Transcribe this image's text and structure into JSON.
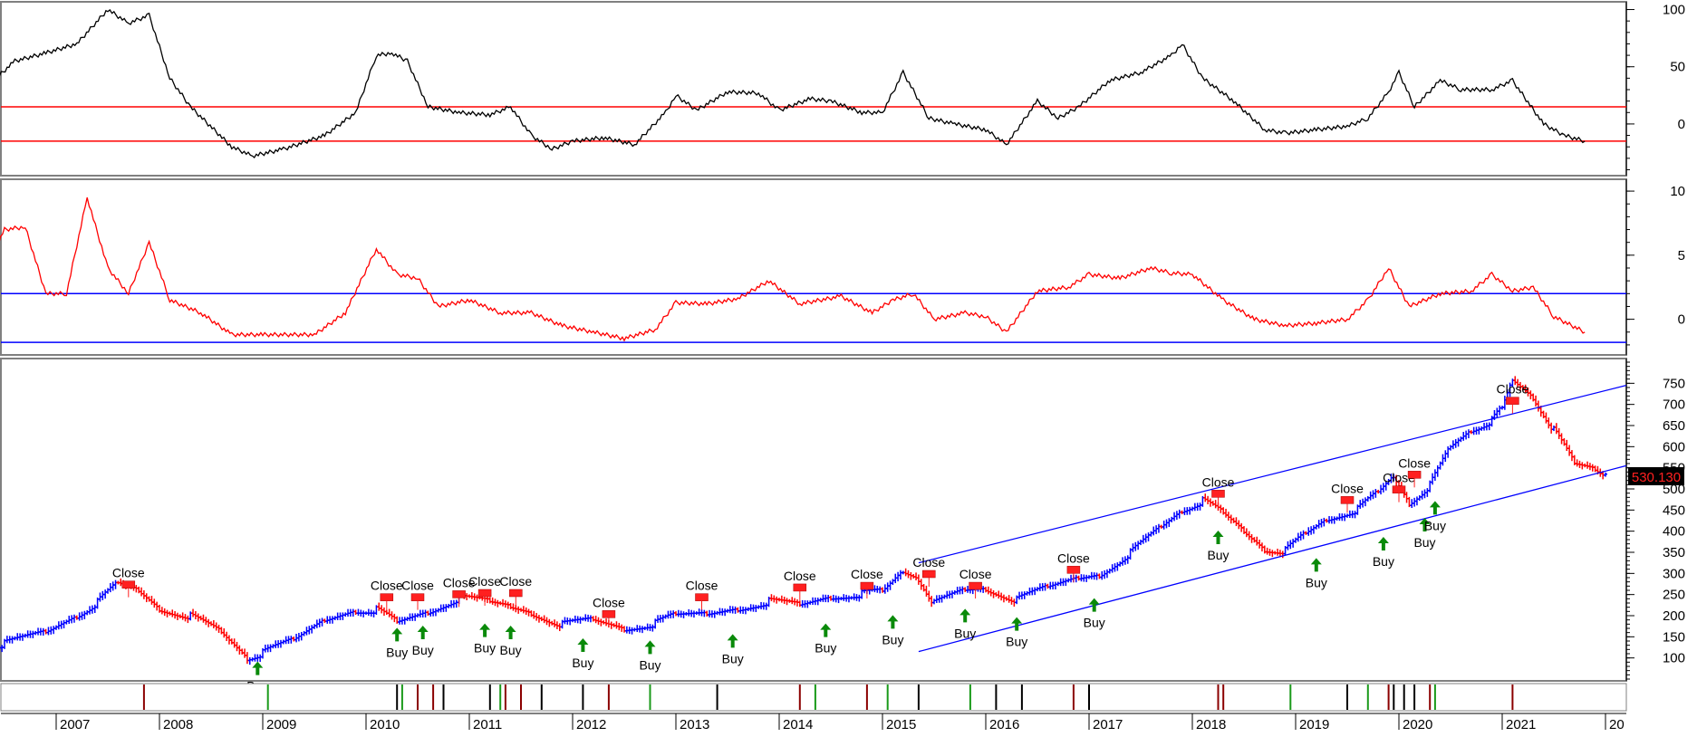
{
  "chart_data": {
    "type": "candlestick",
    "x_labels": [
      "2007",
      "2008",
      "2009",
      "2010",
      "2011",
      "2012",
      "2013",
      "2014",
      "2015",
      "2016",
      "2017",
      "2018",
      "2019",
      "2020",
      "2021",
      "20"
    ],
    "panels": [
      {
        "name": "oscillator-1",
        "yticks": [
          100,
          50,
          0
        ],
        "ylim": [
          -42,
          102
        ],
        "reference_lines": [
          {
            "value": 15,
            "color": "#ff0000"
          },
          {
            "value": -15,
            "color": "#ff0000"
          }
        ],
        "line_color": "#000000",
        "series": [
          [
            2006.0,
            25
          ],
          [
            2006.3,
            30
          ],
          [
            2006.6,
            55
          ],
          [
            2006.9,
            62
          ],
          [
            2007.2,
            70
          ],
          [
            2007.5,
            100
          ],
          [
            2007.7,
            88
          ],
          [
            2007.9,
            95
          ],
          [
            2008.1,
            40
          ],
          [
            2008.3,
            15
          ],
          [
            2008.7,
            -20
          ],
          [
            2008.9,
            -28
          ],
          [
            2009.2,
            -22
          ],
          [
            2009.6,
            -10
          ],
          [
            2009.9,
            10
          ],
          [
            2010.1,
            60
          ],
          [
            2010.25,
            62
          ],
          [
            2010.4,
            55
          ],
          [
            2010.6,
            15
          ],
          [
            2010.9,
            10
          ],
          [
            2011.2,
            8
          ],
          [
            2011.4,
            15
          ],
          [
            2011.6,
            -10
          ],
          [
            2011.8,
            -22
          ],
          [
            2012.0,
            -15
          ],
          [
            2012.3,
            -12
          ],
          [
            2012.6,
            -18
          ],
          [
            2012.9,
            10
          ],
          [
            2013.0,
            25
          ],
          [
            2013.2,
            12
          ],
          [
            2013.5,
            28
          ],
          [
            2013.8,
            27
          ],
          [
            2014.0,
            12
          ],
          [
            2014.3,
            22
          ],
          [
            2014.5,
            20
          ],
          [
            2014.8,
            10
          ],
          [
            2015.0,
            10
          ],
          [
            2015.2,
            45
          ],
          [
            2015.45,
            5
          ],
          [
            2015.7,
            0
          ],
          [
            2016.0,
            -5
          ],
          [
            2016.2,
            -18
          ],
          [
            2016.5,
            20
          ],
          [
            2016.7,
            5
          ],
          [
            2016.9,
            15
          ],
          [
            2017.2,
            38
          ],
          [
            2017.5,
            45
          ],
          [
            2017.8,
            60
          ],
          [
            2017.9,
            70
          ],
          [
            2018.1,
            40
          ],
          [
            2018.4,
            20
          ],
          [
            2018.7,
            -5
          ],
          [
            2018.9,
            -8
          ],
          [
            2019.2,
            -5
          ],
          [
            2019.5,
            -2
          ],
          [
            2019.7,
            5
          ],
          [
            2019.9,
            28
          ],
          [
            2020.0,
            45
          ],
          [
            2020.15,
            15
          ],
          [
            2020.4,
            38
          ],
          [
            2020.6,
            30
          ],
          [
            2020.9,
            30
          ],
          [
            2021.1,
            38
          ],
          [
            2021.4,
            0
          ],
          [
            2021.6,
            -10
          ],
          [
            2021.8,
            -15
          ]
        ]
      },
      {
        "name": "oscillator-2",
        "yticks": [
          10,
          5,
          0
        ],
        "ylim": [
          -2.5,
          10.5
        ],
        "reference_lines": [
          {
            "value": 2.0,
            "color": "#0000ff"
          },
          {
            "value": -1.8,
            "color": "#0000ff"
          }
        ],
        "line_color": "#ff0000",
        "series": [
          [
            2006.0,
            1.3
          ],
          [
            2006.2,
            1.5
          ],
          [
            2006.5,
            7.0
          ],
          [
            2006.7,
            7.2
          ],
          [
            2006.9,
            2.0
          ],
          [
            2007.1,
            2.0
          ],
          [
            2007.3,
            9.5
          ],
          [
            2007.5,
            4.0
          ],
          [
            2007.7,
            2.0
          ],
          [
            2007.9,
            6.0
          ],
          [
            2008.1,
            1.5
          ],
          [
            2008.4,
            0.5
          ],
          [
            2008.7,
            -1.2
          ],
          [
            2009.0,
            -1.2
          ],
          [
            2009.5,
            -1.2
          ],
          [
            2009.8,
            0.5
          ],
          [
            2010.1,
            5.5
          ],
          [
            2010.3,
            3.5
          ],
          [
            2010.5,
            3.2
          ],
          [
            2010.7,
            1.0
          ],
          [
            2011.0,
            1.5
          ],
          [
            2011.3,
            0.5
          ],
          [
            2011.6,
            0.5
          ],
          [
            2011.9,
            -0.5
          ],
          [
            2012.2,
            -1.0
          ],
          [
            2012.5,
            -1.5
          ],
          [
            2012.8,
            -0.8
          ],
          [
            2013.0,
            1.3
          ],
          [
            2013.3,
            1.2
          ],
          [
            2013.6,
            1.6
          ],
          [
            2013.9,
            3.0
          ],
          [
            2014.2,
            1.2
          ],
          [
            2014.6,
            1.8
          ],
          [
            2014.9,
            0.5
          ],
          [
            2015.1,
            1.5
          ],
          [
            2015.3,
            2.0
          ],
          [
            2015.5,
            0.0
          ],
          [
            2015.8,
            0.5
          ],
          [
            2016.0,
            0.2
          ],
          [
            2016.2,
            -1.0
          ],
          [
            2016.5,
            2.2
          ],
          [
            2016.8,
            2.5
          ],
          [
            2017.0,
            3.5
          ],
          [
            2017.3,
            3.2
          ],
          [
            2017.6,
            4.0
          ],
          [
            2017.8,
            3.6
          ],
          [
            2018.0,
            3.5
          ],
          [
            2018.3,
            1.5
          ],
          [
            2018.6,
            0.0
          ],
          [
            2018.9,
            -0.5
          ],
          [
            2019.2,
            -0.3
          ],
          [
            2019.5,
            0.0
          ],
          [
            2019.7,
            1.5
          ],
          [
            2019.9,
            4.0
          ],
          [
            2020.1,
            1.0
          ],
          [
            2020.4,
            2.0
          ],
          [
            2020.7,
            2.2
          ],
          [
            2020.9,
            3.5
          ],
          [
            2021.1,
            2.2
          ],
          [
            2021.3,
            2.5
          ],
          [
            2021.5,
            0.2
          ],
          [
            2021.8,
            -1.0
          ]
        ]
      },
      {
        "name": "price",
        "yticks": [
          750,
          700,
          650,
          600,
          550,
          500,
          450,
          400,
          350,
          300,
          250,
          200,
          150,
          100
        ],
        "ylim": [
          50,
          800
        ],
        "up_color": "#0000ff",
        "down_color": "#ff0000",
        "last_price_label": "530.130",
        "last_price_value": 530.13,
        "close_path": [
          [
            2006.0,
            115
          ],
          [
            2006.5,
            135
          ],
          [
            2006.9,
            160
          ],
          [
            2007.2,
            200
          ],
          [
            2007.4,
            230
          ],
          [
            2007.6,
            275
          ],
          [
            2007.8,
            260
          ],
          [
            2008.0,
            220
          ],
          [
            2008.3,
            200
          ],
          [
            2008.6,
            160
          ],
          [
            2008.85,
            100
          ],
          [
            2009.0,
            110
          ],
          [
            2009.3,
            140
          ],
          [
            2009.6,
            190
          ],
          [
            2009.9,
            215
          ],
          [
            2010.1,
            215
          ],
          [
            2010.3,
            185
          ],
          [
            2010.6,
            210
          ],
          [
            2010.9,
            240
          ],
          [
            2011.2,
            230
          ],
          [
            2011.4,
            222
          ],
          [
            2011.6,
            210
          ],
          [
            2011.9,
            180
          ],
          [
            2012.2,
            190
          ],
          [
            2012.5,
            170
          ],
          [
            2012.8,
            180
          ],
          [
            2013.0,
            200
          ],
          [
            2013.3,
            205
          ],
          [
            2013.6,
            220
          ],
          [
            2013.9,
            235
          ],
          [
            2014.2,
            225
          ],
          [
            2014.5,
            245
          ],
          [
            2014.8,
            250
          ],
          [
            2015.0,
            255
          ],
          [
            2015.2,
            305
          ],
          [
            2015.35,
            290
          ],
          [
            2015.5,
            230
          ],
          [
            2015.8,
            260
          ],
          [
            2016.0,
            265
          ],
          [
            2016.3,
            235
          ],
          [
            2016.6,
            265
          ],
          [
            2016.9,
            290
          ],
          [
            2017.1,
            300
          ],
          [
            2017.4,
            350
          ],
          [
            2017.7,
            410
          ],
          [
            2017.9,
            450
          ],
          [
            2018.1,
            470
          ],
          [
            2018.3,
            440
          ],
          [
            2018.5,
            400
          ],
          [
            2018.7,
            360
          ],
          [
            2018.9,
            355
          ],
          [
            2019.1,
            395
          ],
          [
            2019.3,
            430
          ],
          [
            2019.6,
            450
          ],
          [
            2019.8,
            490
          ],
          [
            2019.95,
            530
          ],
          [
            2020.1,
            470
          ],
          [
            2020.3,
            510
          ],
          [
            2020.5,
            600
          ],
          [
            2020.7,
            640
          ],
          [
            2020.9,
            660
          ],
          [
            2021.0,
            690
          ],
          [
            2021.1,
            760
          ],
          [
            2021.3,
            720
          ],
          [
            2021.5,
            640
          ],
          [
            2021.7,
            560
          ],
          [
            2021.9,
            550
          ],
          [
            2022.0,
            535
          ]
        ],
        "trend_channel": {
          "upper": [
            [
              2015.35,
              325
            ],
            [
              2022.2,
              745
            ]
          ],
          "lower": [
            [
              2015.35,
              115
            ],
            [
              2022.2,
              555
            ]
          ],
          "color": "#0000ff"
        },
        "signals": [
          {
            "type": "Close",
            "x": 2007.7,
            "price": 265
          },
          {
            "type": "Close",
            "x": 2010.2,
            "price": 235
          },
          {
            "type": "Close",
            "x": 2010.5,
            "price": 235
          },
          {
            "type": "Close",
            "x": 2010.9,
            "price": 242
          },
          {
            "type": "Close",
            "x": 2011.15,
            "price": 245
          },
          {
            "type": "Close",
            "x": 2011.45,
            "price": 245
          },
          {
            "type": "Close",
            "x": 2012.35,
            "price": 195
          },
          {
            "type": "Close",
            "x": 2013.25,
            "price": 235
          },
          {
            "type": "Close",
            "x": 2014.2,
            "price": 258
          },
          {
            "type": "Close",
            "x": 2014.85,
            "price": 262
          },
          {
            "type": "Close",
            "x": 2015.45,
            "price": 290
          },
          {
            "type": "Close",
            "x": 2015.9,
            "price": 262
          },
          {
            "type": "Close",
            "x": 2016.85,
            "price": 300
          },
          {
            "type": "Close",
            "x": 2018.25,
            "price": 480
          },
          {
            "type": "Close",
            "x": 2019.5,
            "price": 465
          },
          {
            "type": "Close",
            "x": 2020.0,
            "price": 490
          },
          {
            "type": "Close",
            "x": 2020.15,
            "price": 525
          },
          {
            "type": "Close",
            "x": 2021.1,
            "price": 700
          },
          {
            "type": "Buy",
            "x": 2008.95,
            "price": 100
          },
          {
            "type": "Buy",
            "x": 2010.3,
            "price": 180
          },
          {
            "type": "Buy",
            "x": 2010.55,
            "price": 185
          },
          {
            "type": "Buy",
            "x": 2011.15,
            "price": 190
          },
          {
            "type": "Buy",
            "x": 2011.4,
            "price": 185
          },
          {
            "type": "Buy",
            "x": 2012.1,
            "price": 155
          },
          {
            "type": "Buy",
            "x": 2012.75,
            "price": 150
          },
          {
            "type": "Buy",
            "x": 2013.55,
            "price": 165
          },
          {
            "type": "Buy",
            "x": 2014.45,
            "price": 190
          },
          {
            "type": "Buy",
            "x": 2015.1,
            "price": 210
          },
          {
            "type": "Buy",
            "x": 2015.8,
            "price": 225
          },
          {
            "type": "Buy",
            "x": 2016.3,
            "price": 205
          },
          {
            "type": "Buy",
            "x": 2017.05,
            "price": 250
          },
          {
            "type": "Buy",
            "x": 2018.25,
            "price": 410
          },
          {
            "type": "Buy",
            "x": 2019.2,
            "price": 345
          },
          {
            "type": "Buy",
            "x": 2019.85,
            "price": 395
          },
          {
            "type": "Buy",
            "x": 2020.25,
            "price": 440
          },
          {
            "type": "Buy",
            "x": 2020.35,
            "price": 480
          }
        ]
      }
    ],
    "event_bars": {
      "dark_red": [
        2007.85,
        2010.5,
        2010.65,
        2011.35,
        2011.5,
        2012.35,
        2014.2,
        2014.85,
        2016.85,
        2018.25,
        2018.3,
        2019.9,
        2020.3,
        2021.1
      ],
      "black": [
        2010.3,
        2010.75,
        2011.2,
        2011.7,
        2012.1,
        2013.4,
        2015.35,
        2016.1,
        2016.35,
        2017.0,
        2019.5,
        2019.95,
        2020.05,
        2020.15
      ],
      "green": [
        2009.05,
        2010.35,
        2011.3,
        2012.75,
        2014.35,
        2015.05,
        2015.85,
        2018.95,
        2019.7,
        2020.35
      ]
    }
  }
}
